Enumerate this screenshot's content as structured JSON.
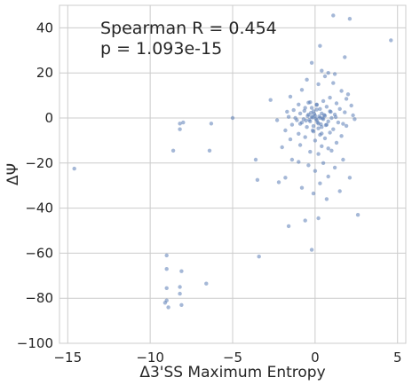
{
  "chart_data": {
    "type": "scatter",
    "xlabel": "Δ3'SS Maximum Entropy",
    "ylabel": "ΔΨ",
    "xlim": [
      -15.5,
      5.5
    ],
    "ylim": [
      -100,
      50
    ],
    "xticks": [
      -15,
      -10,
      -5,
      0,
      5
    ],
    "yticks": [
      -100,
      -80,
      -60,
      -40,
      -20,
      0,
      20,
      40
    ],
    "grid": true,
    "point_color": "#4c72b0",
    "annotation": {
      "line1": "Spearman R = 0.454",
      "line2": "p = 1.093e-15"
    },
    "points": [
      [
        1.1,
        45.5
      ],
      [
        2.1,
        44.0
      ],
      [
        4.6,
        34.5
      ],
      [
        0.3,
        32.0
      ],
      [
        1.8,
        27.0
      ],
      [
        -0.2,
        24.5
      ],
      [
        0.4,
        21.0
      ],
      [
        0.8,
        20.0
      ],
      [
        1.2,
        19.5
      ],
      [
        0.6,
        18.5
      ],
      [
        -0.5,
        17.0
      ],
      [
        1.1,
        15.5
      ],
      [
        0.2,
        15.0
      ],
      [
        -0.8,
        12.5
      ],
      [
        1.6,
        12.0
      ],
      [
        2.0,
        10.5
      ],
      [
        -1.5,
        9.5
      ],
      [
        0.9,
        9.0
      ],
      [
        1.9,
        8.5
      ],
      [
        -2.7,
        8.0
      ],
      [
        0.5,
        7.5
      ],
      [
        -0.3,
        7.0
      ],
      [
        1.3,
        6.5
      ],
      [
        -1.0,
        6.0
      ],
      [
        0.1,
        6.0
      ],
      [
        2.2,
        5.5
      ],
      [
        0.7,
        5.0
      ],
      [
        -0.6,
        4.5
      ],
      [
        1.5,
        4.0
      ],
      [
        0.3,
        4.0
      ],
      [
        -1.3,
        3.5
      ],
      [
        -0.1,
        3.0
      ],
      [
        0.9,
        3.0
      ],
      [
        1.8,
        2.5
      ],
      [
        -0.9,
        2.0
      ],
      [
        0.4,
        2.0
      ],
      [
        -0.4,
        1.5
      ],
      [
        1.2,
        1.5
      ],
      [
        0.0,
        1.0
      ],
      [
        0.6,
        1.0
      ],
      [
        -1.6,
        0.5
      ],
      [
        -0.2,
        0.5
      ],
      [
        0.3,
        0.0
      ],
      [
        -5.0,
        0.0
      ],
      [
        1.0,
        0.0
      ],
      [
        -0.7,
        -0.5
      ],
      [
        0.5,
        -0.5
      ],
      [
        2.4,
        -0.5
      ],
      [
        -1.1,
        -1.0
      ],
      [
        0.1,
        -1.0
      ],
      [
        0.8,
        -1.5
      ],
      [
        -0.3,
        -1.5
      ],
      [
        1.4,
        -2.0
      ],
      [
        -0.8,
        -2.0
      ],
      [
        0.2,
        -2.5
      ],
      [
        -8.2,
        -2.5
      ],
      [
        -8.0,
        -2.0
      ],
      [
        -6.3,
        -2.5
      ],
      [
        -1.4,
        -3.0
      ],
      [
        0.7,
        -3.0
      ],
      [
        1.9,
        -3.5
      ],
      [
        -0.5,
        -4.0
      ],
      [
        0.4,
        -4.0
      ],
      [
        -8.2,
        -5.0
      ],
      [
        1.1,
        -5.0
      ],
      [
        -1.8,
        -5.5
      ],
      [
        -0.1,
        -6.0
      ],
      [
        0.9,
        -6.5
      ],
      [
        -1.0,
        -7.0
      ],
      [
        0.3,
        -7.5
      ],
      [
        1.6,
        -8.0
      ],
      [
        -0.6,
        -8.5
      ],
      [
        0.6,
        -9.0
      ],
      [
        -1.5,
        -9.5
      ],
      [
        0.0,
        -10.0
      ],
      [
        1.3,
        -11.0
      ],
      [
        -0.9,
        -12.0
      ],
      [
        0.4,
        -12.5
      ],
      [
        -2.0,
        -13.0
      ],
      [
        0.8,
        -13.5
      ],
      [
        -8.6,
        -14.5
      ],
      [
        -6.4,
        -14.5
      ],
      [
        1.0,
        -14.5
      ],
      [
        -0.3,
        -15.0
      ],
      [
        0.2,
        -16.0
      ],
      [
        -3.6,
        -18.5
      ],
      [
        -1.4,
        -18.5
      ],
      [
        1.7,
        -18.5
      ],
      [
        -1.0,
        -19.5
      ],
      [
        0.5,
        -20.0
      ],
      [
        -0.4,
        -21.0
      ],
      [
        1.2,
        -22.0
      ],
      [
        -14.6,
        -22.5
      ],
      [
        0.0,
        -23.5
      ],
      [
        -1.8,
        -26.5
      ],
      [
        0.8,
        -26.0
      ],
      [
        2.1,
        -26.5
      ],
      [
        -3.5,
        -27.5
      ],
      [
        -2.2,
        -28.5
      ],
      [
        0.3,
        -29.0
      ],
      [
        -0.8,
        -31.0
      ],
      [
        1.5,
        -32.5
      ],
      [
        -0.1,
        -33.5
      ],
      [
        0.7,
        -36.0
      ],
      [
        2.6,
        -43.0
      ],
      [
        -0.6,
        -45.5
      ],
      [
        0.2,
        -44.5
      ],
      [
        -1.6,
        -48.0
      ],
      [
        -0.2,
        -58.5
      ],
      [
        -9.0,
        -61.0
      ],
      [
        -3.4,
        -61.5
      ],
      [
        -9.0,
        -67.0
      ],
      [
        -8.1,
        -68.0
      ],
      [
        -6.6,
        -73.5
      ],
      [
        -8.2,
        -75.0
      ],
      [
        -9.0,
        -75.5
      ],
      [
        -8.2,
        -78.0
      ],
      [
        -9.0,
        -81.0
      ],
      [
        -9.1,
        -82.0
      ],
      [
        -8.1,
        -83.0
      ],
      [
        -8.9,
        -84.0
      ],
      [
        -0.15,
        0.2
      ],
      [
        0.05,
        -0.3
      ],
      [
        -0.35,
        -0.8
      ],
      [
        0.25,
        0.7
      ],
      [
        -0.05,
        1.8
      ],
      [
        0.15,
        -1.9
      ],
      [
        -0.25,
        2.3
      ],
      [
        0.35,
        -2.8
      ],
      [
        -0.45,
        0.9
      ],
      [
        0.45,
        -0.1
      ],
      [
        -0.55,
        -1.2
      ],
      [
        0.55,
        1.3
      ],
      [
        -0.1,
        -3.6
      ],
      [
        0.1,
        3.7
      ],
      [
        -0.65,
        3.2
      ],
      [
        0.65,
        -3.2
      ],
      [
        -0.2,
        4.5
      ],
      [
        0.2,
        -4.6
      ],
      [
        -1.2,
        0.0
      ],
      [
        1.25,
        0.4
      ],
      [
        -0.9,
        -2.6
      ],
      [
        0.95,
        2.7
      ],
      [
        -0.15,
        -5.5
      ],
      [
        0.1,
        5.8
      ],
      [
        -1.7,
        2.8
      ],
      [
        1.7,
        -2.6
      ],
      [
        -0.4,
        6.8
      ],
      [
        0.4,
        -6.9
      ],
      [
        -2.3,
        -1.0
      ],
      [
        2.3,
        1.2
      ]
    ]
  }
}
